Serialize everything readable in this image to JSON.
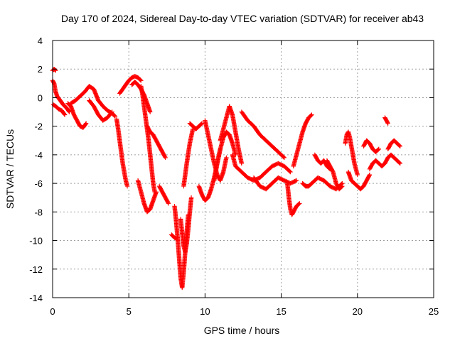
{
  "chart_data": {
    "type": "scatter",
    "title": "Day 170 of 2024, Sidereal Day-to-day VTEC variation (SDTVAR) for receiver ab43",
    "xlabel": "GPS time / hours",
    "ylabel": "SDTVAR / TECUs",
    "xlim": [
      0,
      25
    ],
    "ylim": [
      -14,
      4
    ],
    "xticks": [
      0,
      5,
      10,
      15,
      20,
      25
    ],
    "yticks": [
      -14,
      -12,
      -10,
      -8,
      -6,
      -4,
      -2,
      0,
      2,
      4
    ],
    "grid": true,
    "marker": "+",
    "color": "#ff0000",
    "series": [
      {
        "name": "t0",
        "x": [
          0.0,
          0.1,
          0.2,
          0.3,
          0.5,
          0.7,
          0.9,
          1.1
        ],
        "y": [
          1.2,
          1.0,
          0.4,
          0.1,
          -0.2,
          -0.5,
          -0.7,
          -1.0
        ]
      },
      {
        "name": "t1",
        "x": [
          0.0,
          0.1,
          0.2
        ],
        "y": [
          1.9,
          2.0,
          1.9
        ]
      },
      {
        "name": "t2",
        "x": [
          0.05,
          0.2,
          0.4,
          0.6,
          0.8
        ],
        "y": [
          -0.5,
          -0.6,
          -0.8,
          -0.9,
          -1.2
        ]
      },
      {
        "name": "t3",
        "x": [
          1.0,
          1.2,
          1.4,
          1.6,
          1.8,
          2.0,
          2.2
        ],
        "y": [
          -0.4,
          -0.6,
          -1.2,
          -1.6,
          -2.0,
          -2.1,
          -1.8
        ]
      },
      {
        "name": "t4",
        "x": [
          1.2,
          1.5,
          1.8,
          2.1,
          2.4,
          2.7,
          3.0,
          3.3,
          3.6,
          3.9,
          4.1
        ],
        "y": [
          -0.4,
          -0.2,
          0.1,
          0.4,
          0.8,
          0.6,
          -0.2,
          -0.6,
          -0.9,
          -1.1,
          -1.3
        ]
      },
      {
        "name": "t5",
        "x": [
          2.4,
          2.7,
          3.0,
          3.3,
          3.6,
          3.9
        ],
        "y": [
          -0.2,
          -0.6,
          -1.2,
          -1.6,
          -1.4,
          -1.0
        ]
      },
      {
        "name": "t6",
        "x": [
          4.2,
          4.3,
          4.4,
          4.5,
          4.6,
          4.7,
          4.8,
          4.9
        ],
        "y": [
          -1.5,
          -2.2,
          -3.0,
          -3.8,
          -4.6,
          -5.2,
          -5.8,
          -6.2
        ]
      },
      {
        "name": "t7",
        "x": [
          4.4,
          4.6,
          4.8,
          5.0,
          5.2,
          5.4,
          5.6,
          5.8
        ],
        "y": [
          0.3,
          0.6,
          0.9,
          1.2,
          1.4,
          1.5,
          1.4,
          1.2
        ]
      },
      {
        "name": "t8",
        "x": [
          5.2,
          5.4,
          5.6,
          5.8,
          6.0,
          6.2,
          6.4
        ],
        "y": [
          0.9,
          1.1,
          0.9,
          0.6,
          0.2,
          -0.4,
          -1.0
        ]
      },
      {
        "name": "t9",
        "x": [
          5.8,
          5.9,
          6.0,
          6.1,
          6.2,
          6.3,
          6.4,
          6.5,
          6.6,
          6.7
        ],
        "y": [
          0.8,
          0.2,
          -0.6,
          -1.4,
          -2.2,
          -3.0,
          -4.0,
          -5.0,
          -6.0,
          -6.6
        ]
      },
      {
        "name": "t10",
        "x": [
          5.6,
          5.8,
          6.0,
          6.2,
          6.4,
          6.6,
          6.8
        ],
        "y": [
          -5.8,
          -6.6,
          -7.4,
          -8.0,
          -7.8,
          -7.2,
          -6.6
        ]
      },
      {
        "name": "t11",
        "x": [
          6.2,
          6.4,
          6.6,
          6.8,
          7.0,
          7.2,
          7.4
        ],
        "y": [
          -2.0,
          -2.4,
          -2.6,
          -3.0,
          -3.4,
          -3.8,
          -4.2
        ]
      },
      {
        "name": "t12",
        "x": [
          7.0,
          7.2,
          7.4,
          7.6
        ],
        "y": [
          -6.2,
          -6.6,
          -7.0,
          -7.4
        ]
      },
      {
        "name": "t13",
        "x": [
          7.8,
          8.0,
          8.2
        ],
        "y": [
          -9.6,
          -9.8,
          -9.9
        ]
      },
      {
        "name": "t14",
        "x": [
          8.0,
          8.1,
          8.2,
          8.3,
          8.4,
          8.5,
          8.6,
          8.7,
          8.8,
          8.9
        ],
        "y": [
          -7.6,
          -8.6,
          -9.8,
          -11.2,
          -12.6,
          -13.3,
          -12.2,
          -10.8,
          -9.4,
          -8.2
        ]
      },
      {
        "name": "t15",
        "x": [
          8.4,
          8.5,
          8.6,
          8.7,
          8.8,
          8.9,
          9.0,
          9.1
        ],
        "y": [
          -8.5,
          -9.5,
          -10.4,
          -10.8,
          -10.2,
          -9.2,
          -8.0,
          -7.0
        ]
      },
      {
        "name": "t16",
        "x": [
          8.6,
          8.8,
          9.0,
          9.2
        ],
        "y": [
          -6.2,
          -4.6,
          -3.2,
          -2.2
        ]
      },
      {
        "name": "t17",
        "x": [
          9.0,
          9.2,
          9.4,
          9.6,
          9.8
        ],
        "y": [
          -1.8,
          -2.0,
          -2.2,
          -2.0,
          -1.8
        ]
      },
      {
        "name": "t18",
        "x": [
          9.6,
          9.8,
          10.0,
          10.2,
          10.4,
          10.6,
          10.8,
          11.0
        ],
        "y": [
          -6.2,
          -6.8,
          -7.2,
          -7.0,
          -6.4,
          -5.6,
          -4.6,
          -3.6
        ]
      },
      {
        "name": "t19",
        "x": [
          10.0,
          10.2,
          10.4,
          10.6,
          10.8,
          11.0,
          11.2,
          11.4
        ],
        "y": [
          -1.6,
          -2.6,
          -3.6,
          -4.6,
          -5.4,
          -5.8,
          -5.2,
          -4.2
        ]
      },
      {
        "name": "t20",
        "x": [
          11.0,
          11.2,
          11.4,
          11.6,
          11.8,
          12.0,
          12.2,
          12.4
        ],
        "y": [
          -3.0,
          -2.2,
          -1.4,
          -0.6,
          -1.2,
          -2.4,
          -3.6,
          -4.6
        ]
      },
      {
        "name": "t21",
        "x": [
          10.6,
          10.8,
          11.0,
          11.2,
          11.4,
          11.6,
          11.8,
          12.0
        ],
        "y": [
          -5.8,
          -4.6,
          -3.6,
          -2.8,
          -2.4,
          -2.6,
          -3.2,
          -4.0
        ]
      },
      {
        "name": "t22",
        "x": [
          11.8,
          12.0,
          12.4,
          12.8,
          13.2,
          13.6,
          14.0,
          14.4,
          14.8,
          15.2,
          15.6
        ],
        "y": [
          -4.0,
          -4.8,
          -5.2,
          -5.6,
          -5.8,
          -5.6,
          -5.2,
          -4.8,
          -4.6,
          -4.8,
          -5.2
        ]
      },
      {
        "name": "t23",
        "x": [
          12.4,
          12.8,
          13.2,
          13.6,
          14.0,
          14.4,
          14.8,
          15.2
        ],
        "y": [
          -1.0,
          -1.6,
          -2.0,
          -2.6,
          -3.0,
          -3.4,
          -3.8,
          -4.2
        ]
      },
      {
        "name": "t24",
        "x": [
          13.2,
          13.6,
          14.0,
          14.4,
          14.8,
          15.2,
          15.6,
          16.0
        ],
        "y": [
          -5.6,
          -6.2,
          -6.4,
          -6.0,
          -5.6,
          -5.8,
          -6.0,
          -5.8
        ]
      },
      {
        "name": "t25",
        "x": [
          15.4,
          15.5,
          15.6,
          15.7,
          15.8,
          16.0,
          16.2
        ],
        "y": [
          -6.0,
          -7.0,
          -7.8,
          -8.2,
          -8.0,
          -7.6,
          -7.4
        ]
      },
      {
        "name": "t26",
        "x": [
          15.8,
          16.0,
          16.2,
          16.4,
          16.6,
          16.8,
          17.0
        ],
        "y": [
          -4.8,
          -4.0,
          -3.2,
          -2.4,
          -1.8,
          -1.4,
          -1.2
        ]
      },
      {
        "name": "t27",
        "x": [
          16.4,
          16.6,
          16.8,
          17.0,
          17.4,
          17.8,
          18.2,
          18.6,
          19.0
        ],
        "y": [
          -6.0,
          -6.2,
          -6.2,
          -6.0,
          -5.6,
          -5.8,
          -6.2,
          -6.4,
          -6.0
        ]
      },
      {
        "name": "t28",
        "x": [
          17.2,
          17.4,
          17.6,
          17.8,
          18.0,
          18.2
        ],
        "y": [
          -4.0,
          -4.4,
          -4.6,
          -4.4,
          -4.8,
          -5.0
        ]
      },
      {
        "name": "t29",
        "x": [
          18.0,
          18.2,
          18.4,
          18.6,
          18.8,
          19.0
        ],
        "y": [
          -4.4,
          -4.8,
          -5.2,
          -6.0,
          -6.4,
          -6.2
        ]
      },
      {
        "name": "t30",
        "x": [
          19.2,
          19.3,
          19.4,
          19.5,
          19.6,
          19.7,
          19.8,
          19.9,
          20.0
        ],
        "y": [
          -3.2,
          -2.6,
          -2.4,
          -2.8,
          -3.4,
          -4.0,
          -4.6,
          -5.0,
          -5.4
        ]
      },
      {
        "name": "t31",
        "x": [
          19.4,
          19.6,
          19.8,
          20.0,
          20.2,
          20.4,
          20.6,
          20.8
        ],
        "y": [
          -5.2,
          -5.8,
          -6.0,
          -6.2,
          -6.4,
          -6.2,
          -5.8,
          -5.4
        ]
      },
      {
        "name": "t32",
        "x": [
          20.4,
          20.6,
          20.8,
          21.0,
          21.2,
          21.4
        ],
        "y": [
          -3.4,
          -3.0,
          -3.2,
          -3.6,
          -3.8,
          -3.6
        ]
      },
      {
        "name": "t33",
        "x": [
          20.8,
          21.0,
          21.2,
          21.4,
          21.6,
          21.8,
          22.0,
          22.2,
          22.4,
          22.6,
          22.8
        ],
        "y": [
          -5.0,
          -4.6,
          -4.4,
          -4.6,
          -4.8,
          -4.6,
          -4.2,
          -4.0,
          -4.2,
          -4.4,
          -4.6
        ]
      },
      {
        "name": "t34",
        "x": [
          21.8,
          21.9,
          22.0
        ],
        "y": [
          -1.4,
          -1.6,
          -1.8
        ]
      },
      {
        "name": "t35",
        "x": [
          22.0,
          22.2,
          22.4,
          22.6,
          22.8
        ],
        "y": [
          -3.6,
          -3.2,
          -3.0,
          -3.2,
          -3.4
        ]
      }
    ]
  }
}
